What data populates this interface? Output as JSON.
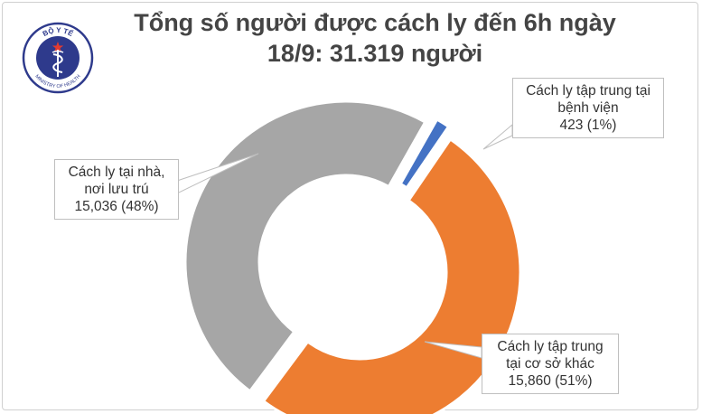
{
  "colors": {
    "home": "#a6a6a6",
    "other": "#ed7d31",
    "hospital": "#4472c4",
    "logo_blue": "#2e3a8c"
  },
  "logo": {
    "top_text": "BỘ Y TẾ",
    "bottom_text": "MINISTRY OF HEALTH",
    "icon": "caduceus-emblem-icon"
  },
  "chart_data": {
    "type": "pie",
    "title_line1": "Tổng số người được cách ly đến 6h ngày",
    "title_line2": "18/9: 31.319 người",
    "slices": [
      {
        "key": "hospital",
        "label_lines": [
          "Cách ly tập trung tại",
          "bệnh viện"
        ],
        "value_text": "423 (1%)",
        "value": 423,
        "percent": 1
      },
      {
        "key": "other",
        "label_lines": [
          "Cách ly tập trung",
          "tại cơ sở khác"
        ],
        "value_text": "15,860 (51%)",
        "value": 15860,
        "percent": 51
      },
      {
        "key": "home",
        "label_lines": [
          "Cách ly tại nhà,",
          "nơi lưu trú"
        ],
        "value_text": "15,036 (48%)",
        "value": 15036,
        "percent": 48
      }
    ]
  }
}
